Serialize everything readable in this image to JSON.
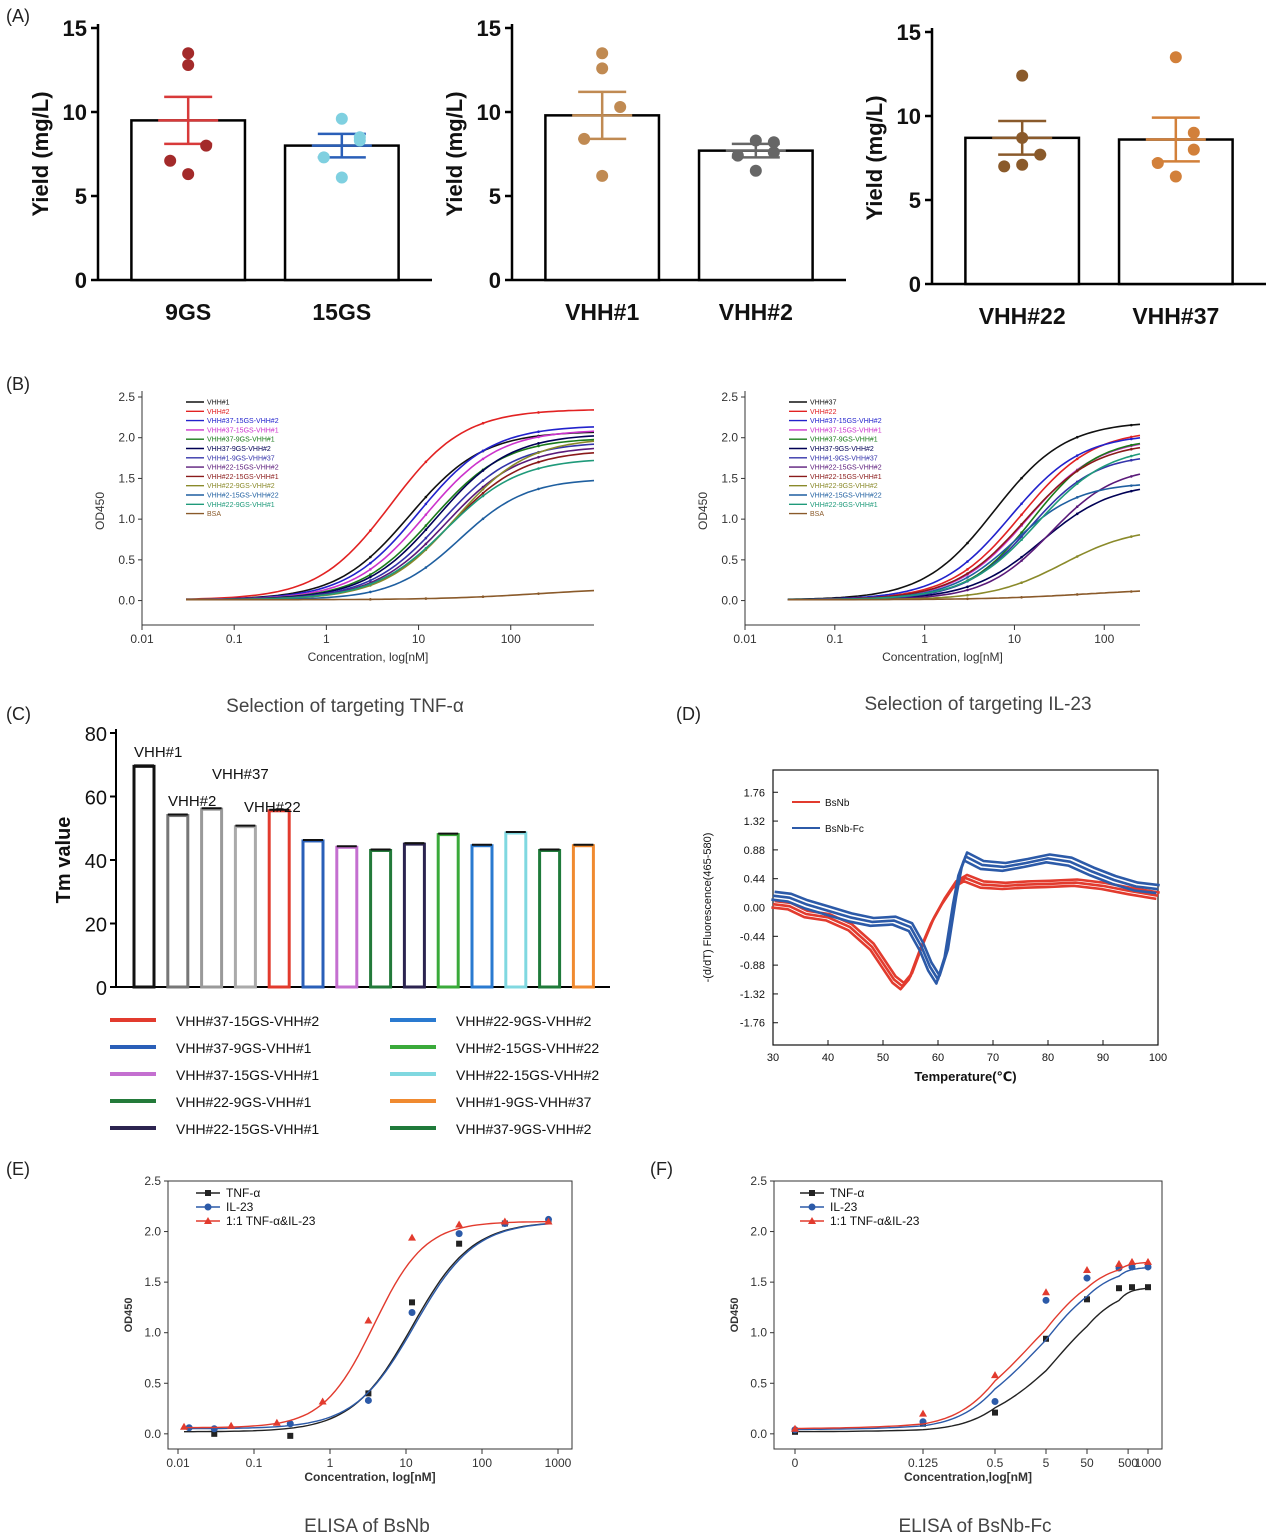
{
  "panels": {
    "A": "(A)",
    "B": "(B)",
    "C": "(C)",
    "D": "(D)",
    "E": "(E)",
    "F": "(F)"
  },
  "captions": {
    "b_left": "Selection of targeting TNF-α",
    "b_right": "Selection of targeting IL-23",
    "e": "ELISA of  BsNb",
    "f": "ELISA of  BsNb-Fc"
  },
  "colors": {
    "dark_red": "#a32a2a",
    "light_blue": "#7fd0e0",
    "brown": "#c08a52",
    "grey": "#666666",
    "orange_brown": "#d2803a",
    "blue_mean": "#2a5fb8",
    "curve_black": "#222222",
    "curve_red": "#e23b2e",
    "curve_blue": "#2c5aa8"
  },
  "chart_data": [
    {
      "id": "a1",
      "type": "bar",
      "ylabel": "Yield (mg/L)",
      "ylim": [
        0,
        15
      ],
      "yticks": [
        0,
        5,
        10,
        15
      ],
      "categories": [
        "9GS",
        "15GS"
      ],
      "values": [
        9.5,
        8.0
      ],
      "errors": [
        1.4,
        0.7
      ],
      "points": [
        [
          13.5,
          12.8,
          8.0,
          7.1,
          6.3
        ],
        [
          9.6,
          8.5,
          8.3,
          7.3,
          6.1
        ]
      ],
      "point_colors": [
        "#a32a2a",
        "#7fd0e0"
      ],
      "error_colors": [
        "#d83a3a",
        "#2a5fb8"
      ]
    },
    {
      "id": "a2",
      "type": "bar",
      "ylabel": "Yield (mg/L)",
      "ylim": [
        0,
        15
      ],
      "yticks": [
        0,
        5,
        10,
        15
      ],
      "categories": [
        "VHH#1",
        "VHH#2"
      ],
      "values": [
        9.8,
        7.7
      ],
      "errors": [
        1.4,
        0.4
      ],
      "points": [
        [
          13.5,
          12.6,
          10.3,
          8.4,
          6.2
        ],
        [
          8.3,
          8.2,
          7.6,
          7.4,
          6.5
        ]
      ],
      "point_colors": [
        "#c08a52",
        "#666666"
      ],
      "error_colors": [
        "#c08a52",
        "#666666"
      ]
    },
    {
      "id": "a3",
      "type": "bar",
      "ylabel": "Yield (mg/L)",
      "ylim": [
        0,
        15
      ],
      "yticks": [
        0,
        5,
        10,
        15
      ],
      "categories": [
        "VHH#22",
        "VHH#37"
      ],
      "values": [
        8.7,
        8.6
      ],
      "errors": [
        1.0,
        1.3
      ],
      "points": [
        [
          12.4,
          8.7,
          7.7,
          7.0,
          7.1
        ],
        [
          13.5,
          9.0,
          8.0,
          7.2,
          6.4
        ]
      ],
      "point_colors": [
        "#8a5a2b",
        "#d2803a"
      ],
      "error_colors": [
        "#8a5a2b",
        "#d2803a"
      ]
    },
    {
      "id": "b1",
      "type": "line",
      "xlabel": "Concentration, log[nM]",
      "ylabel": "OD450",
      "xscale": "log",
      "xlim": [
        0.01,
        800
      ],
      "ylim": [
        -0.3,
        2.5
      ],
      "xticks": [
        0.01,
        0.1,
        1,
        10,
        100
      ],
      "xtick_labels": [
        "0.01",
        "0.1",
        "1",
        "10",
        "100"
      ],
      "yticks": [
        0,
        0.5,
        1,
        1.5,
        2,
        2.5
      ],
      "ytick_labels": [
        "0.0",
        "0.5",
        "1.0",
        "1.5",
        "2.0",
        "2.5"
      ],
      "legend": [
        "VHH#1",
        "VHH#2",
        "VHH#37-15GS-VHH#2",
        "VHH#37-15GS-VHH#1",
        "VHH#37-9GS-VHH#1",
        "VHH37-9GS-VHH#2",
        "VHH#1-9GS-VHH#37",
        "VHH#22-15GS-VHH#2",
        "VHH#22-15GS-VHH#1",
        "VHH#22-9GS-VHH#2",
        "VHH#2-15GS-VHH#22",
        "VHH#22-9GS-VHH#1",
        "BSA"
      ],
      "series_colors": [
        "#111111",
        "#e22222",
        "#2222cc",
        "#cc33cc",
        "#1a7a1a",
        "#000055",
        "#3333aa",
        "#5a1a7a",
        "#8a1a1a",
        "#8a8a2a",
        "#1f5fa0",
        "#1f9a7a",
        "#8a5a2a"
      ],
      "curves": [
        {
          "top": 2.08,
          "ec50": 8,
          "hill": 1.1
        },
        {
          "top": 2.35,
          "ec50": 5,
          "hill": 1.1
        },
        {
          "top": 2.15,
          "ec50": 10,
          "hill": 1.1
        },
        {
          "top": 2.1,
          "ec50": 12,
          "hill": 1.1
        },
        {
          "top": 2.0,
          "ec50": 14,
          "hill": 1.1
        },
        {
          "top": 2.05,
          "ec50": 16,
          "hill": 1.1
        },
        {
          "top": 1.95,
          "ec50": 18,
          "hill": 1.1
        },
        {
          "top": 1.9,
          "ec50": 20,
          "hill": 1.1
        },
        {
          "top": 1.85,
          "ec50": 22,
          "hill": 1.1
        },
        {
          "top": 2.0,
          "ec50": 25,
          "hill": 1.1
        },
        {
          "top": 1.5,
          "ec50": 28,
          "hill": 1.2
        },
        {
          "top": 1.75,
          "ec50": 20,
          "hill": 1.1
        },
        {
          "top": 0.16,
          "ec50": 200,
          "hill": 0.8
        }
      ]
    },
    {
      "id": "b2",
      "type": "line",
      "xlabel": "Concentration, log[nM]",
      "ylabel": "OD450",
      "xscale": "log",
      "xlim": [
        0.01,
        250
      ],
      "ylim": [
        -0.3,
        2.5
      ],
      "xticks": [
        0.01,
        0.1,
        1,
        10,
        100
      ],
      "xtick_labels": [
        "0.01",
        "0.1",
        "1",
        "10",
        "100"
      ],
      "yticks": [
        0,
        0.5,
        1,
        1.5,
        2,
        2.5
      ],
      "ytick_labels": [
        "0.0",
        "0.5",
        "1.0",
        "1.5",
        "2.0",
        "2.5"
      ],
      "legend": [
        "VHH#37",
        "VHH#22",
        "VHH#37-15GS-VHH#2",
        "VHH#37-15GS-VHH#1",
        "VHH#37-9GS-VHH#1",
        "VHH37-9GS-VHH#2",
        "VHH#1-9GS-VHH#37",
        "VHH#22-15GS-VHH#2",
        "VHH#22-15GS-VHH#1",
        "VHH#22-9GS-VHH#2",
        "VHH#2-15GS-VHH#22",
        "VHH#22-9GS-VHH#1",
        "BSA"
      ],
      "series_colors": [
        "#111111",
        "#e22222",
        "#2222cc",
        "#cc33cc",
        "#1a7a1a",
        "#000055",
        "#3333aa",
        "#5a1a7a",
        "#8a1a1a",
        "#8a8a2a",
        "#1f5fa0",
        "#1f9a7a",
        "#8a5a2a"
      ],
      "curves": [
        {
          "top": 2.2,
          "ec50": 6,
          "hill": 1.1
        },
        {
          "top": 2.1,
          "ec50": 12,
          "hill": 1.1
        },
        {
          "top": 2.05,
          "ec50": 9,
          "hill": 1.1
        },
        {
          "top": 2.0,
          "ec50": 14,
          "hill": 1.1
        },
        {
          "top": 2.0,
          "ec50": 16,
          "hill": 1.2
        },
        {
          "top": 1.45,
          "ec50": 20,
          "hill": 1.1
        },
        {
          "top": 1.8,
          "ec50": 15,
          "hill": 1.2
        },
        {
          "top": 1.65,
          "ec50": 25,
          "hill": 1.2
        },
        {
          "top": 1.95,
          "ec50": 13,
          "hill": 1.1
        },
        {
          "top": 0.9,
          "ec50": 35,
          "hill": 1.1
        },
        {
          "top": 1.45,
          "ec50": 10,
          "hill": 1.2
        },
        {
          "top": 1.9,
          "ec50": 18,
          "hill": 1.1
        },
        {
          "top": 0.15,
          "ec50": 60,
          "hill": 0.8
        }
      ]
    },
    {
      "id": "c",
      "type": "bar",
      "ylabel": "Tm value",
      "ylim": [
        0,
        80
      ],
      "yticks": [
        0,
        20,
        40,
        60,
        80
      ],
      "values": [
        69.5,
        54,
        56,
        50.5,
        55.5,
        46,
        44,
        43,
        45,
        48,
        44.5,
        48.5,
        43,
        44.5
      ],
      "bar_colors": [
        "#111111",
        "#777777",
        "#999999",
        "#aaaaaa",
        "#e23b2e",
        "#2a5fb8",
        "#c46fd0",
        "#237a3a",
        "#2c2450",
        "#3aaa3a",
        "#2a7ad0",
        "#80d8e0",
        "#1f7a3a",
        "#f08a30"
      ],
      "annotations": [
        "VHH#1",
        "VHH#2",
        "VHH#37",
        "VHH#22"
      ],
      "legend": [
        {
          "label": "VHH#37-15GS-VHH#2",
          "color": "#e23b2e"
        },
        {
          "label": "VHH#37-9GS-VHH#1",
          "color": "#2a5fb8"
        },
        {
          "label": "VHH#37-15GS-VHH#1",
          "color": "#c46fd0"
        },
        {
          "label": "VHH#22-9GS-VHH#1",
          "color": "#237a3a"
        },
        {
          "label": "VHH#22-15GS-VHH#1",
          "color": "#2c2450"
        },
        {
          "label": "VHH#22-9GS-VHH#2",
          "color": "#2a7ad0"
        },
        {
          "label": "VHH#2-15GS-VHH#22",
          "color": "#3aaa3a"
        },
        {
          "label": "VHH#22-15GS-VHH#2",
          "color": "#80d8e0"
        },
        {
          "label": "VHH#1-9GS-VHH#37",
          "color": "#f08a30"
        },
        {
          "label": "VHH#37-9GS-VHH#2",
          "color": "#1f7a3a"
        }
      ]
    },
    {
      "id": "d",
      "type": "line",
      "xlabel": "Temperature(℃)",
      "ylabel": "-(d/dT) Fluorescence(465-580)",
      "xlim": [
        30,
        100
      ],
      "ylim": [
        -2.1,
        2.1
      ],
      "xticks": [
        30,
        40,
        50,
        60,
        70,
        80,
        90,
        100
      ],
      "yticks": [
        1.76,
        1.32,
        0.88,
        0.44,
        0,
        -0.44,
        -0.88,
        -1.32,
        -1.76
      ],
      "ytick_labels": [
        "1.76",
        "1.32",
        "0.88",
        "0.44",
        "0.00",
        "-0.44",
        "-0.88",
        "-1.32",
        "-1.76"
      ],
      "series": [
        {
          "name": "BsNb",
          "color": "#e23b2e",
          "x": [
            30,
            33,
            36,
            40,
            44,
            48,
            50,
            52,
            53.5,
            55,
            57,
            59,
            61,
            63,
            65,
            68,
            72,
            76,
            80,
            85,
            90,
            95,
            100
          ],
          "y": [
            0.05,
            0.02,
            -0.1,
            -0.15,
            -0.3,
            -0.6,
            -0.85,
            -1.1,
            -1.2,
            -1.05,
            -0.6,
            -0.2,
            0.1,
            0.35,
            0.45,
            0.35,
            0.33,
            0.35,
            0.36,
            0.38,
            0.33,
            0.25,
            0.18
          ]
        },
        {
          "name": "BsNb-Fc",
          "color": "#2c5aa8",
          "x": [
            30,
            33,
            36,
            40,
            44,
            48,
            52,
            55,
            57,
            58.5,
            60,
            61.5,
            63,
            64,
            65,
            68,
            72,
            76,
            80,
            84,
            88,
            92,
            96,
            100
          ],
          "y": [
            0.18,
            0.15,
            0.05,
            -0.05,
            -0.15,
            -0.22,
            -0.2,
            -0.3,
            -0.6,
            -0.9,
            -1.1,
            -0.7,
            0.1,
            0.55,
            0.78,
            0.65,
            0.62,
            0.68,
            0.75,
            0.7,
            0.55,
            0.42,
            0.32,
            0.28
          ]
        }
      ]
    },
    {
      "id": "e",
      "type": "line",
      "xlabel": "Concentration, log[nM]",
      "ylabel": "OD450",
      "xscale": "log",
      "xlim": [
        0.01,
        1000
      ],
      "ylim": [
        -0.15,
        2.5
      ],
      "xticks": [
        0.01,
        0.1,
        1,
        10,
        100,
        1000
      ],
      "xtick_labels": [
        "0.01",
        "0.1",
        "1",
        "10",
        "100",
        "1000"
      ],
      "yticks": [
        0,
        0.5,
        1,
        1.5,
        2,
        2.5
      ],
      "ytick_labels": [
        "0.0",
        "0.5",
        "1.0",
        "1.5",
        "2.0",
        "2.5"
      ],
      "series": [
        {
          "name": "TNF-α",
          "color": "#222222",
          "marker": "square",
          "top": 2.1,
          "bottom": 0.02,
          "ec50": 12,
          "hill": 1.1,
          "x": [
            0.03,
            0.3,
            3.2,
            12,
            50,
            200,
            750
          ],
          "y": [
            0.0,
            -0.02,
            0.4,
            1.3,
            1.88,
            2.08,
            2.1
          ]
        },
        {
          "name": "IL-23",
          "color": "#2c5aa8",
          "marker": "circle",
          "top": 2.1,
          "bottom": 0.05,
          "ec50": 13,
          "hill": 1.1,
          "x": [
            0.014,
            0.03,
            0.3,
            3.2,
            12,
            50,
            200,
            750
          ],
          "y": [
            0.06,
            0.05,
            0.1,
            0.33,
            1.2,
            1.98,
            2.08,
            2.12
          ]
        },
        {
          "name": "1:1 TNF-α&IL-23",
          "color": "#e23b2e",
          "marker": "triangle",
          "top": 2.1,
          "bottom": 0.06,
          "ec50": 3.8,
          "hill": 1.3,
          "x": [
            0.012,
            0.05,
            0.2,
            0.8,
            3.2,
            12,
            50,
            200,
            750
          ],
          "y": [
            0.07,
            0.08,
            0.11,
            0.32,
            1.12,
            1.94,
            2.07,
            2.1,
            2.1
          ]
        }
      ]
    },
    {
      "id": "f",
      "type": "line",
      "xlabel": "Concentration,log[nM]",
      "ylabel": "OD450",
      "xscale": "categorical",
      "ylim": [
        -0.15,
        2.5
      ],
      "xtick_labels": [
        "0",
        "0.125",
        "0.5",
        "5",
        "50",
        "500",
        "1000"
      ],
      "yticks": [
        0,
        0.5,
        1,
        1.5,
        2,
        2.5
      ],
      "ytick_labels": [
        "0.0",
        "0.5",
        "1.0",
        "1.5",
        "2.0",
        "2.5"
      ],
      "series": [
        {
          "name": "TNF-α",
          "color": "#222222",
          "marker": "square",
          "x": [
            0,
            1,
            2,
            2.5,
            3,
            3.5,
            4,
            4.5
          ],
          "y": [
            0.02,
            0.1,
            0.21,
            0.94,
            1.33,
            1.44,
            1.45,
            1.45
          ]
        },
        {
          "name": "IL-23",
          "color": "#2c5aa8",
          "marker": "circle",
          "x": [
            0,
            1,
            2,
            2.5,
            3,
            3.5,
            4,
            4.5
          ],
          "y": [
            0.04,
            0.12,
            0.32,
            1.32,
            1.54,
            1.64,
            1.65,
            1.65
          ]
        },
        {
          "name": "1:1 TNF-α&IL-23",
          "color": "#e23b2e",
          "marker": "triangle",
          "x": [
            0,
            1,
            2,
            2.5,
            3,
            3.5,
            4,
            4.5
          ],
          "y": [
            0.05,
            0.2,
            0.58,
            1.4,
            1.62,
            1.68,
            1.7,
            1.7
          ]
        }
      ]
    }
  ]
}
